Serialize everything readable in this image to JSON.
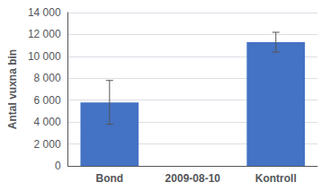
{
  "chart_data": {
    "type": "bar",
    "categories": [
      "Bond",
      "2009-08-10",
      "Kontroll"
    ],
    "values": [
      5800,
      null,
      11300
    ],
    "errors": [
      2000,
      null,
      900
    ],
    "color": "#4472C4",
    "ylabel": "Antal vuxna bin",
    "ylim": [
      0,
      14000
    ],
    "yticks": [
      0,
      {
        "value": 2000,
        "label": "2 000"
      },
      {
        "value": 4000,
        "label": "4 000"
      },
      {
        "value": 6000,
        "label": "6 000"
      },
      {
        "value": 8000,
        "label": "8 000"
      },
      {
        "value": 10000,
        "label": "10 000"
      },
      {
        "value": 12000,
        "label": "12 000"
      },
      {
        "value": 14000,
        "label": "14 000"
      }
    ],
    "grid": true
  }
}
